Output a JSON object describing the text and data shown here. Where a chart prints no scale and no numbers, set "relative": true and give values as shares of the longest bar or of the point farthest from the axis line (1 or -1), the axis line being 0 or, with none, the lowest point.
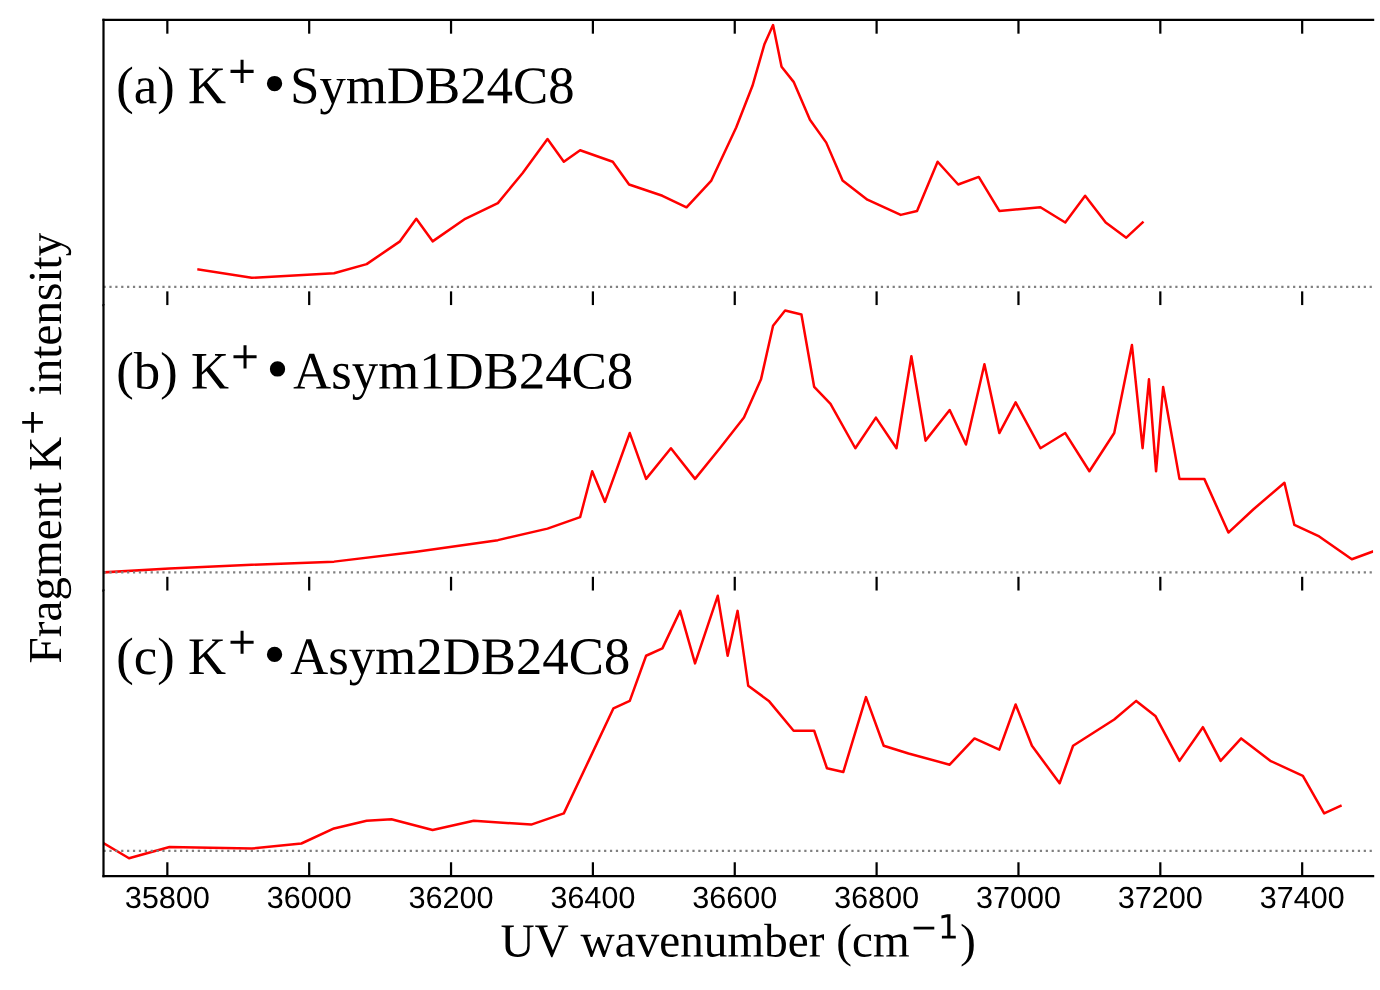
{
  "chart_data": [
    {
      "type": "line",
      "relative": true,
      "xlim": [
        35710,
        37500
      ],
      "xticks": [
        35800,
        36000,
        36200,
        36400,
        36600,
        36800,
        37000,
        37200,
        37400
      ],
      "tick_labels": false,
      "grid": false,
      "legend": false,
      "annotations": [
        "(a) K$^{+}$•SymDB24C8"
      ],
      "ref_lines": [
        {
          "axis": "y",
          "value": 0,
          "color": "#808080",
          "line_style": "dotted"
        }
      ],
      "series": [
        {
          "color": "#ff0000",
          "x": [
            35844,
            35919,
            36035,
            36081,
            36128,
            36151,
            36174,
            36220,
            36266,
            36301,
            36336,
            36359,
            36382,
            36428,
            36451,
            36498,
            36532,
            36567,
            36602,
            36625,
            36642,
            36654,
            36666,
            36683,
            36706,
            36729,
            36752,
            36787,
            36834,
            36857,
            36886,
            36915,
            36944,
            36973,
            37031,
            37066,
            37094,
            37123,
            37152,
            37175
          ],
          "values": [
            0.067,
            0.035,
            0.052,
            0.087,
            0.174,
            0.26,
            0.174,
            0.26,
            0.32,
            0.435,
            0.565,
            0.478,
            0.522,
            0.478,
            0.391,
            0.348,
            0.304,
            0.406,
            0.609,
            0.768,
            0.928,
            1.0,
            0.841,
            0.783,
            0.638,
            0.551,
            0.406,
            0.333,
            0.275,
            0.29,
            0.478,
            0.391,
            0.42,
            0.29,
            0.304,
            0.246,
            0.348,
            0.246,
            0.188,
            0.246
          ]
        }
      ]
    },
    {
      "type": "line",
      "relative": true,
      "xlim": [
        35710,
        37500
      ],
      "xticks": [
        35800,
        36000,
        36200,
        36400,
        36600,
        36800,
        37000,
        37200,
        37400
      ],
      "tick_labels": false,
      "grid": false,
      "legend": false,
      "ylabel": "Fragment K$^{+}$ intensity",
      "annotations": [
        "(b) K$^{+}$•Asym1DB24C8"
      ],
      "ref_lines": [
        {
          "axis": "y",
          "value": 0,
          "color": "#808080",
          "line_style": "dotted"
        }
      ],
      "series": [
        {
          "color": "#ff0000",
          "x": [
            35711,
            35803,
            35919,
            36035,
            36151,
            36266,
            36336,
            36382,
            36399,
            36417,
            36452,
            36475,
            36510,
            36544,
            36579,
            36613,
            36637,
            36654,
            36671,
            36694,
            36712,
            36735,
            36770,
            36799,
            36828,
            36849,
            36869,
            36903,
            36926,
            36952,
            36973,
            36996,
            37031,
            37066,
            37100,
            37135,
            37160,
            37175,
            37184,
            37194,
            37204,
            37227,
            37262,
            37296,
            37331,
            37375,
            37389,
            37424,
            37470,
            37499
          ],
          "values": [
            0.0,
            0.015,
            0.029,
            0.041,
            0.079,
            0.123,
            0.167,
            0.211,
            0.386,
            0.269,
            0.532,
            0.357,
            0.474,
            0.357,
            0.474,
            0.591,
            0.737,
            0.942,
            1.0,
            0.985,
            0.708,
            0.643,
            0.474,
            0.591,
            0.474,
            0.825,
            0.503,
            0.62,
            0.488,
            0.795,
            0.532,
            0.649,
            0.474,
            0.532,
            0.386,
            0.532,
            0.868,
            0.474,
            0.737,
            0.386,
            0.708,
            0.357,
            0.357,
            0.152,
            0.24,
            0.342,
            0.181,
            0.137,
            0.05,
            0.079
          ]
        }
      ]
    },
    {
      "type": "line",
      "relative": true,
      "xlim": [
        35710,
        37500
      ],
      "xticks": [
        35800,
        36000,
        36200,
        36400,
        36600,
        36800,
        37000,
        37200,
        37400
      ],
      "tick_labels": "x",
      "grid": false,
      "legend": false,
      "xlabel": "UV wavenumber (cm$^{−1}$)",
      "annotations": [
        "(c) K$^{+}$•Asym2DB24C8"
      ],
      "ref_lines": [
        {
          "axis": "y",
          "value": 0,
          "color": "#808080",
          "line_style": "dotted"
        }
      ],
      "series": [
        {
          "color": "#ff0000",
          "x": [
            35711,
            35746,
            35803,
            35919,
            35989,
            36035,
            36081,
            36116,
            36174,
            36232,
            36313,
            36359,
            36394,
            36429,
            36452,
            36475,
            36498,
            36523,
            36544,
            36576,
            36590,
            36604,
            36619,
            36648,
            36683,
            36712,
            36730,
            36753,
            36785,
            36810,
            36845,
            36903,
            36938,
            36973,
            36996,
            37019,
            37058,
            37077,
            37135,
            37166,
            37193,
            37227,
            37260,
            37285,
            37314,
            37355,
            37401,
            37431,
            37454
          ],
          "values": [
            0.029,
            -0.029,
            0.015,
            0.009,
            0.029,
            0.088,
            0.118,
            0.124,
            0.082,
            0.118,
            0.103,
            0.147,
            0.353,
            0.559,
            0.588,
            0.765,
            0.794,
            0.941,
            0.735,
            1.0,
            0.765,
            0.941,
            0.647,
            0.588,
            0.471,
            0.471,
            0.324,
            0.309,
            0.603,
            0.412,
            0.382,
            0.338,
            0.441,
            0.397,
            0.574,
            0.412,
            0.265,
            0.412,
            0.515,
            0.588,
            0.529,
            0.353,
            0.485,
            0.353,
            0.441,
            0.353,
            0.294,
            0.147,
            0.176
          ]
        }
      ]
    }
  ]
}
